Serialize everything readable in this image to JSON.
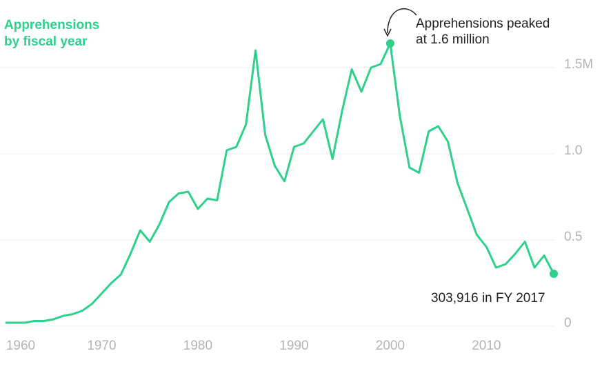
{
  "chart_data": {
    "type": "line",
    "title": "Apprehensions by fiscal year",
    "annotations": [
      "Apprehensions peaked at 1.6 million",
      "303,916 in FY 2017"
    ],
    "x": [
      1960,
      1961,
      1962,
      1963,
      1964,
      1965,
      1966,
      1967,
      1968,
      1969,
      1970,
      1971,
      1972,
      1973,
      1974,
      1975,
      1976,
      1977,
      1978,
      1979,
      1980,
      1981,
      1982,
      1983,
      1984,
      1985,
      1986,
      1987,
      1988,
      1989,
      1990,
      1991,
      1992,
      1993,
      1994,
      1995,
      1996,
      1997,
      1998,
      1999,
      2000,
      2001,
      2002,
      2003,
      2004,
      2005,
      2006,
      2007,
      2008,
      2009,
      2010,
      2011,
      2012,
      2013,
      2014,
      2015,
      2016,
      2017
    ],
    "values": [
      0.02,
      0.02,
      0.02,
      0.03,
      0.03,
      0.04,
      0.06,
      0.07,
      0.09,
      0.13,
      0.19,
      0.25,
      0.3,
      0.42,
      0.556,
      0.49,
      0.59,
      0.72,
      0.77,
      0.78,
      0.68,
      0.74,
      0.73,
      1.02,
      1.04,
      1.17,
      1.6,
      1.11,
      0.93,
      0.84,
      1.04,
      1.06,
      1.13,
      1.2,
      0.97,
      1.25,
      1.49,
      1.36,
      1.5,
      1.52,
      1.64,
      1.22,
      0.92,
      0.89,
      1.13,
      1.16,
      1.07,
      0.83,
      0.68,
      0.53,
      0.46,
      0.34,
      0.36,
      0.42,
      0.49,
      0.34,
      0.41,
      0.303916
    ],
    "color": "#2fcf8d",
    "xlim": [
      1960,
      2017
    ],
    "xticks": [
      1960,
      1970,
      1980,
      1990,
      2000,
      2010
    ],
    "ylim": [
      0,
      1.6
    ],
    "yticks": [
      0,
      0.5,
      {
        "value": 1,
        "label": "1.0"
      },
      {
        "value": 1.5,
        "label": "1.5M"
      }
    ],
    "grid": true
  }
}
